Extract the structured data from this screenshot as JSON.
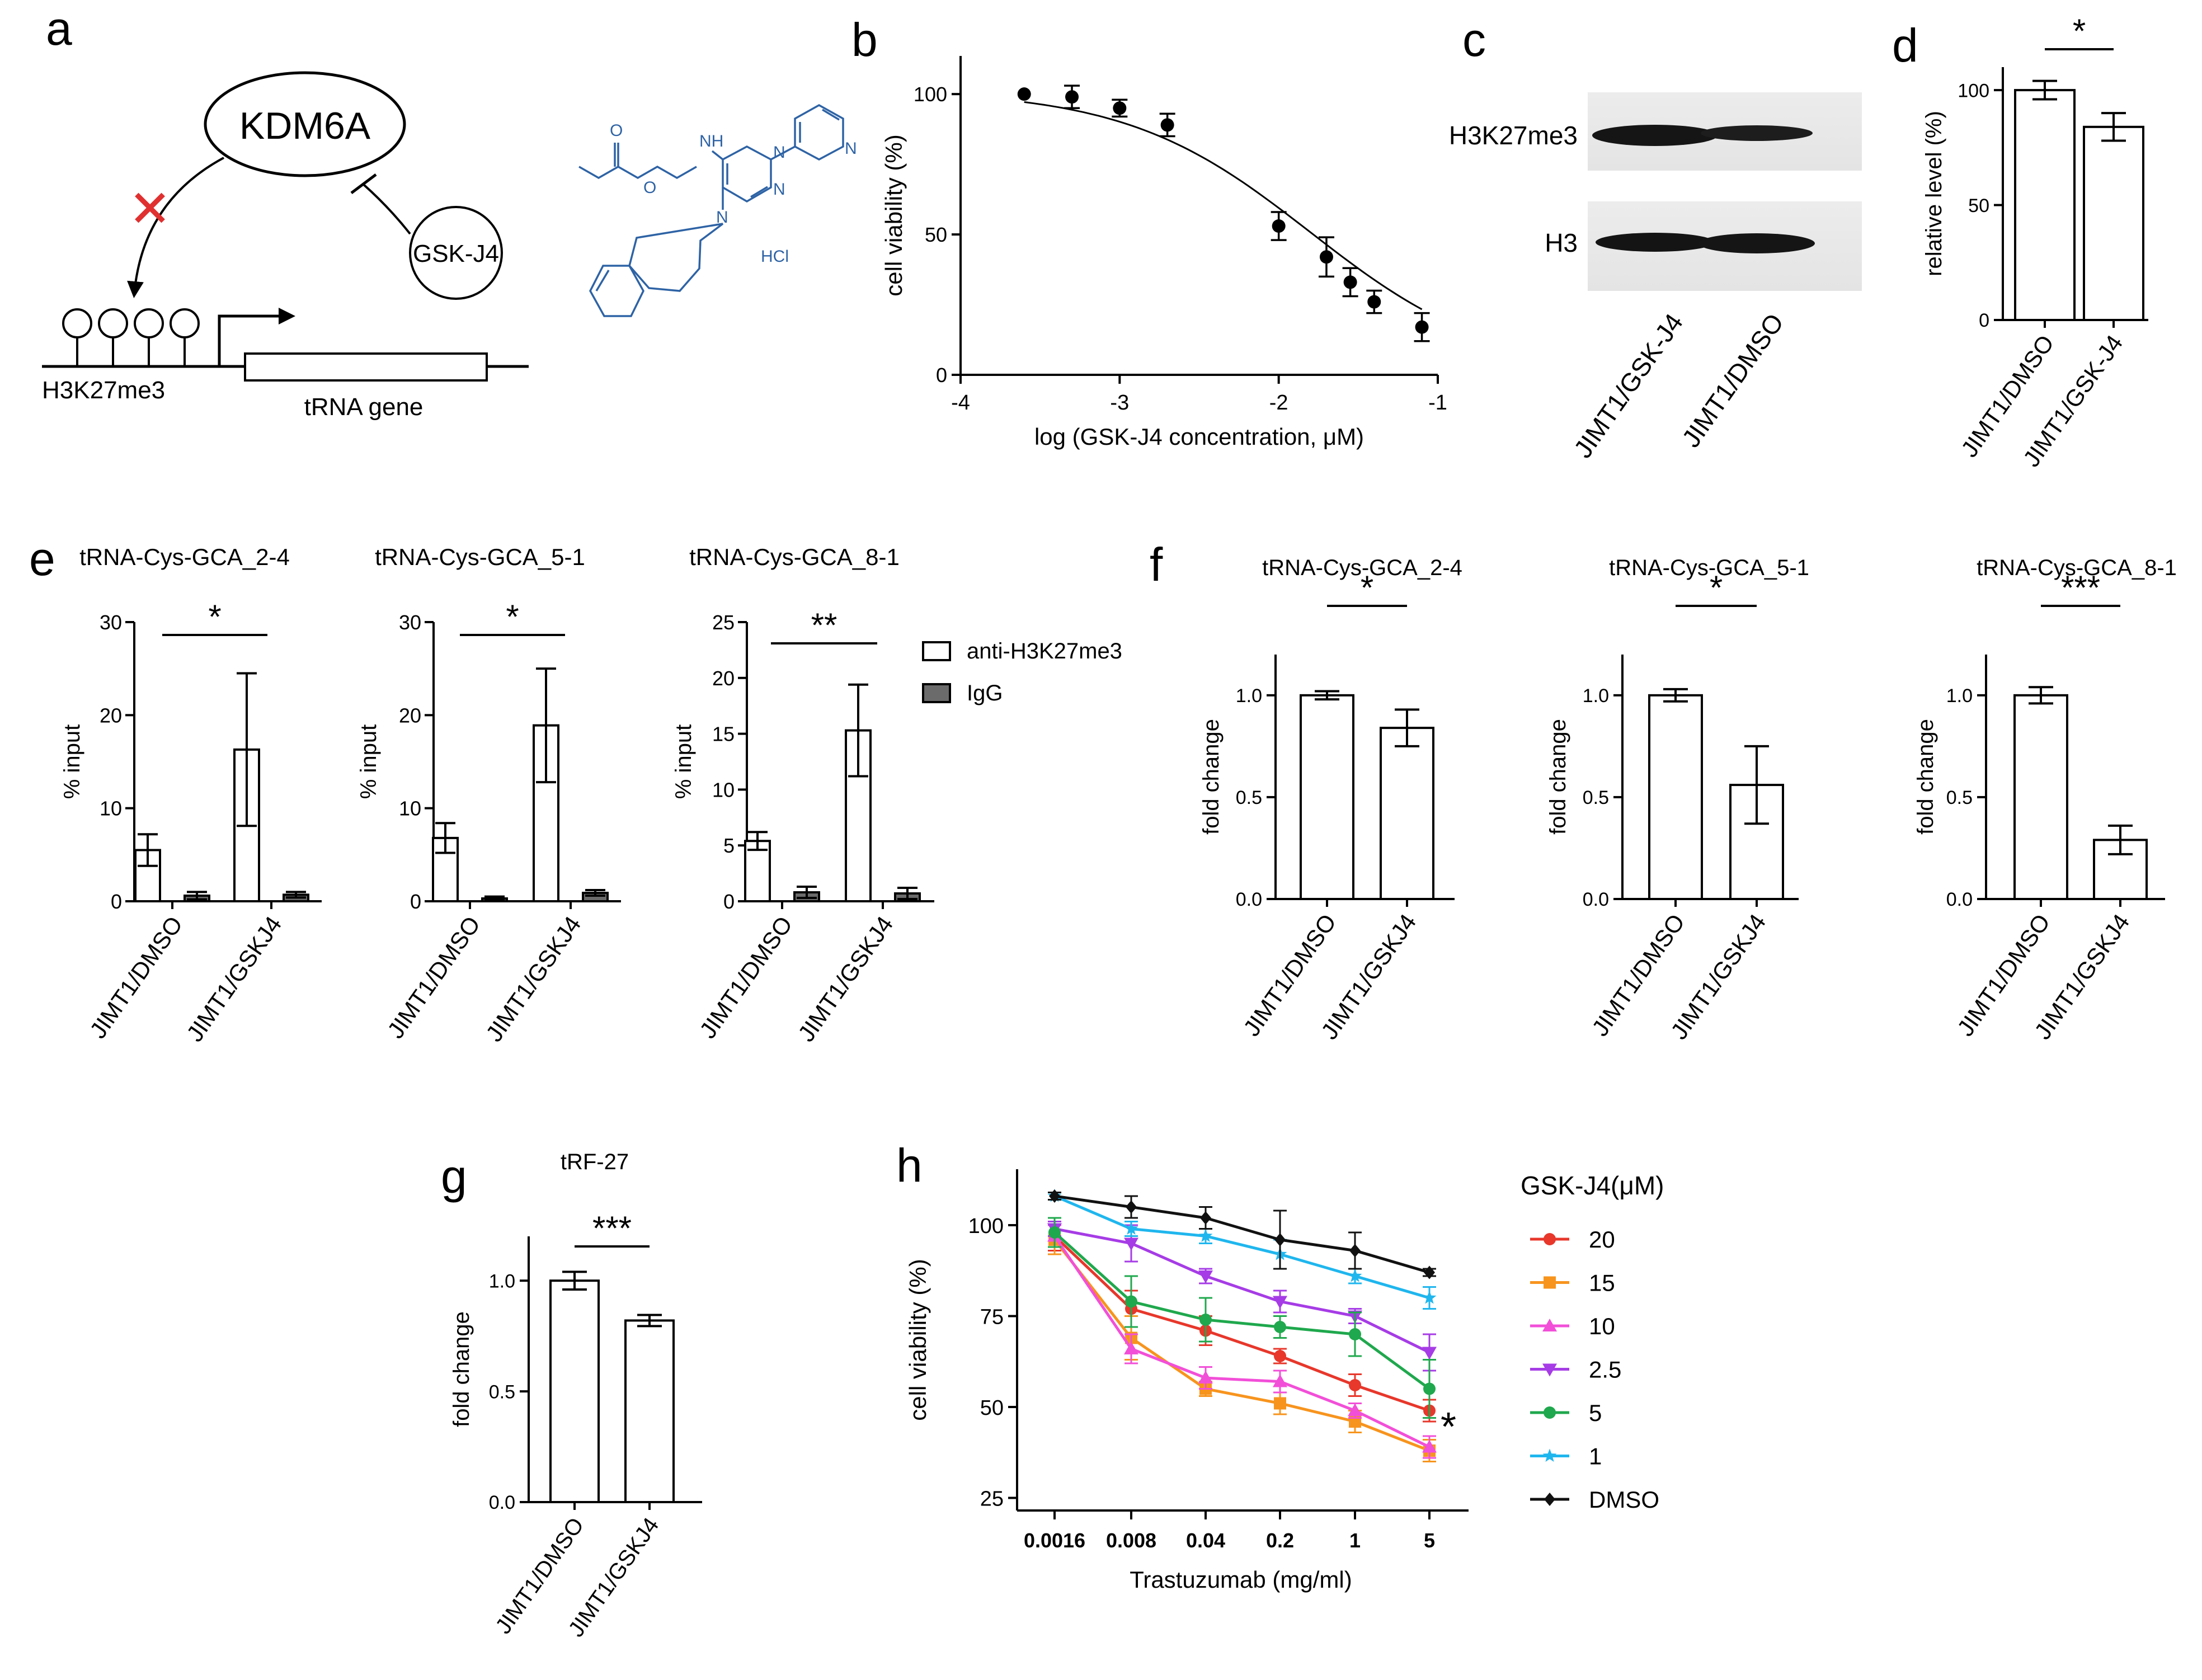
{
  "panels": {
    "a": {
      "letter": "a",
      "enzyme": "KDM6A",
      "inhibitor": "GSK-J4",
      "mark": "H3K27me3",
      "gene": "tRNA gene",
      "inhibit_symbol": "✕",
      "salt": "HCl",
      "atoms": {
        "nh": "NH",
        "n1": "N",
        "n2": "N",
        "n3": "N",
        "n4": "N"
      },
      "colors": {
        "structure": "#2e63a5",
        "cross": "#e03030"
      }
    },
    "b": {
      "letter": "b"
    },
    "c": {
      "letter": "c",
      "bands": [
        "H3K27me3",
        "H3"
      ],
      "lanes": [
        "JIMT1/GSK-J4",
        "JIMT1/DMSO"
      ]
    },
    "d": {
      "letter": "d"
    },
    "e": {
      "letter": "e",
      "legend": [
        "anti-H3K27me3",
        "IgG"
      ],
      "colors": {
        "igg": "#6b6b6b"
      }
    },
    "f": {
      "letter": "f"
    },
    "g": {
      "letter": "g"
    },
    "h": {
      "letter": "h",
      "legend_title": "GSK-J4(μM)",
      "sig": "*"
    }
  },
  "chart_data": [
    {
      "id": "b",
      "type": "scatter",
      "title": "",
      "xlabel": "log (GSK-J4 concentration, μM)",
      "ylabel": "cell viability (%)",
      "xlim": [
        -4,
        -1
      ],
      "ylim": [
        0,
        110
      ],
      "xticks": [
        -4,
        -3,
        -2,
        -1
      ],
      "yticks": [
        0,
        50,
        100
      ],
      "x": [
        -3.6,
        -3.3,
        -3.0,
        -2.7,
        -2.0,
        -1.7,
        -1.55,
        -1.4,
        -1.1
      ],
      "values": [
        100,
        99,
        95,
        89,
        53,
        42,
        33,
        26,
        17
      ],
      "errors": [
        1,
        4,
        3,
        4,
        5,
        7,
        5,
        4,
        5
      ],
      "fit": {
        "top": 101.5,
        "bottom": 0,
        "ic50_log": -1.8,
        "hill": 0.75
      }
    },
    {
      "id": "d",
      "type": "bar",
      "xlabel": "",
      "ylabel": "relative level (%)",
      "ylim": [
        0,
        110
      ],
      "yticks": [
        0,
        50,
        100
      ],
      "categories": [
        "JIMT1/DMSO",
        "JIMT1/GSK-J4"
      ],
      "values": [
        100,
        84
      ],
      "errors": [
        4,
        6
      ],
      "sig": [
        {
          "pair": [
            0,
            1
          ],
          "label": "*"
        }
      ]
    },
    {
      "id": "e1",
      "type": "bar",
      "title": "tRNA-Cys-GCA_2-4",
      "ylabel": "% input",
      "ylim": [
        0,
        30
      ],
      "yticks": [
        0,
        10,
        20,
        30
      ],
      "categories": [
        "JIMT1/DMSO",
        "JIMT1/GSKJ4"
      ],
      "series": [
        {
          "name": "anti-H3K27me3",
          "values": [
            5.5,
            16.3
          ],
          "errors": [
            1.7,
            8.2
          ]
        },
        {
          "name": "IgG",
          "values": [
            0.6,
            0.7
          ],
          "errors": [
            0.4,
            0.3
          ]
        }
      ],
      "sig": [
        {
          "pair": [
            0,
            1
          ],
          "label": "*"
        }
      ]
    },
    {
      "id": "e2",
      "type": "bar",
      "title": "tRNA-Cys-GCA_5-1",
      "ylabel": "% input",
      "ylim": [
        0,
        30
      ],
      "yticks": [
        0,
        10,
        20,
        30
      ],
      "categories": [
        "JIMT1/DMSO",
        "JIMT1/GSKJ4"
      ],
      "series": [
        {
          "name": "anti-H3K27me3",
          "values": [
            6.8,
            18.9
          ],
          "errors": [
            1.6,
            6.1
          ]
        },
        {
          "name": "IgG",
          "values": [
            0.3,
            0.9
          ],
          "errors": [
            0.2,
            0.3
          ]
        }
      ],
      "sig": [
        {
          "pair": [
            0,
            1
          ],
          "label": "*"
        }
      ]
    },
    {
      "id": "e3",
      "type": "bar",
      "title": "tRNA-Cys-GCA_8-1",
      "ylabel": "% input",
      "ylim": [
        0,
        25
      ],
      "yticks": [
        0,
        5,
        10,
        15,
        20,
        25
      ],
      "categories": [
        "JIMT1/DMSO",
        "JIMT1/GSKJ4"
      ],
      "series": [
        {
          "name": "anti-H3K27me3",
          "values": [
            5.4,
            15.3
          ],
          "errors": [
            0.8,
            4.1
          ]
        },
        {
          "name": "IgG",
          "values": [
            0.8,
            0.7
          ],
          "errors": [
            0.5,
            0.5
          ]
        }
      ],
      "sig": [
        {
          "pair": [
            0,
            1
          ],
          "label": "**"
        }
      ]
    },
    {
      "id": "f1",
      "type": "bar",
      "title": "tRNA-Cys-GCA_2-4",
      "ylabel": "fold change",
      "ylim": [
        0,
        1.2
      ],
      "yticks": [
        0.0,
        0.5,
        1.0
      ],
      "categories": [
        "JIMT1/DMSO",
        "JIMT1/GSKJ4"
      ],
      "values": [
        1.0,
        0.84
      ],
      "errors": [
        0.02,
        0.09
      ],
      "sig": [
        {
          "pair": [
            0,
            1
          ],
          "label": "*"
        }
      ]
    },
    {
      "id": "f2",
      "type": "bar",
      "title": "tRNA-Cys-GCA_5-1",
      "ylabel": "fold change",
      "ylim": [
        0,
        1.2
      ],
      "yticks": [
        0.0,
        0.5,
        1.0
      ],
      "categories": [
        "JIMT1/DMSO",
        "JIMT1/GSKJ4"
      ],
      "values": [
        1.0,
        0.56
      ],
      "errors": [
        0.03,
        0.19
      ],
      "sig": [
        {
          "pair": [
            0,
            1
          ],
          "label": "*"
        }
      ]
    },
    {
      "id": "f3",
      "type": "bar",
      "title": "tRNA-Cys-GCA_8-1",
      "ylabel": "fold change",
      "ylim": [
        0,
        1.2
      ],
      "yticks": [
        0.0,
        0.5,
        1.0
      ],
      "categories": [
        "JIMT1/DMSO",
        "JIMT1/GSKJ4"
      ],
      "values": [
        1.0,
        0.29
      ],
      "errors": [
        0.04,
        0.07
      ],
      "sig": [
        {
          "pair": [
            0,
            1
          ],
          "label": "***"
        }
      ]
    },
    {
      "id": "g",
      "type": "bar",
      "title": "tRF-27",
      "ylabel": "fold change",
      "ylim": [
        0,
        1.2
      ],
      "yticks": [
        0.0,
        0.5,
        1.0
      ],
      "categories": [
        "JIMT1/DMSO",
        "JIMT1/GSKJ4"
      ],
      "values": [
        1.0,
        0.82
      ],
      "errors": [
        0.04,
        0.025
      ],
      "sig": [
        {
          "pair": [
            0,
            1
          ],
          "label": "***"
        }
      ]
    },
    {
      "id": "h",
      "type": "line",
      "xlabel": "Trastuzumab (mg/ml)",
      "ylabel": "cell viability (%)",
      "ylim": [
        20,
        112
      ],
      "yticks": [
        25,
        50,
        75,
        100
      ],
      "categories": [
        "0.0016",
        "0.008",
        "0.04",
        "0.2",
        "1",
        "5"
      ],
      "series": [
        {
          "name": "20",
          "color": "#e8372b",
          "marker": "circle",
          "values": [
            97,
            77,
            71,
            64,
            56,
            49
          ],
          "errors": [
            4,
            5,
            4,
            2,
            3,
            3
          ]
        },
        {
          "name": "15",
          "color": "#f7941d",
          "marker": "square",
          "values": [
            96,
            69,
            55,
            51,
            46,
            38
          ],
          "errors": [
            4,
            6,
            2,
            3,
            3,
            3
          ]
        },
        {
          "name": "10",
          "color": "#f24fd8",
          "marker": "triangle",
          "values": [
            97,
            66,
            58,
            57,
            49,
            39
          ],
          "errors": [
            3,
            4,
            3,
            3,
            2,
            3
          ]
        },
        {
          "name": "2.5",
          "color": "#a63ce6",
          "marker": "tridown",
          "values": [
            99,
            95,
            86,
            79,
            75,
            65
          ],
          "errors": [
            2,
            5,
            2,
            3,
            2,
            5
          ]
        },
        {
          "name": "5",
          "color": "#1fa84d",
          "marker": "circle",
          "values": [
            98,
            79,
            74,
            72,
            70,
            55
          ],
          "errors": [
            4,
            7,
            6,
            3,
            6,
            8
          ]
        },
        {
          "name": "1",
          "color": "#1fb6ee",
          "marker": "star",
          "values": [
            108,
            99,
            97,
            92,
            86,
            80
          ],
          "errors": [
            1,
            2,
            2,
            4,
            2,
            3
          ]
        },
        {
          "name": "DMSO",
          "color": "#111111",
          "marker": "diamond",
          "values": [
            108,
            105,
            102,
            96,
            93,
            87
          ],
          "errors": [
            1,
            3,
            3,
            8,
            5,
            1
          ]
        }
      ]
    }
  ]
}
